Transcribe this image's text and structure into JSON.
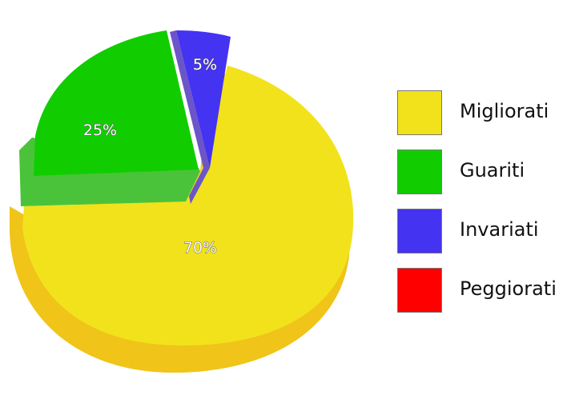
{
  "chart_data": {
    "type": "pie",
    "title": "",
    "categories": [
      "Migliorati",
      "Guariti",
      "Invariati",
      "Peggiorati"
    ],
    "values": [
      70,
      25,
      5,
      0
    ],
    "data_labels": [
      "70%",
      "25%",
      "5%",
      ""
    ],
    "colors": [
      "#f1e21c",
      "#11cd00",
      "#4433f0",
      "#ff0000"
    ],
    "exploded": [
      "Guariti",
      "Invariati"
    ],
    "style": "3d",
    "legend_position": "right"
  }
}
